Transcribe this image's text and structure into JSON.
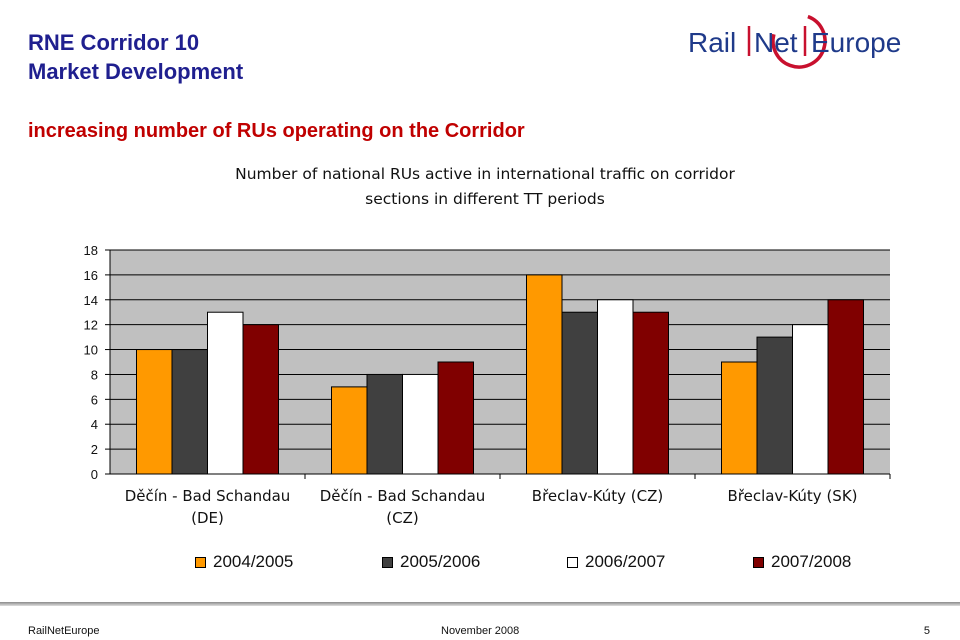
{
  "header": {
    "title_line1": "RNE Corridor 10",
    "title_line2": "Market Development",
    "logo_part1": "Rail",
    "logo_part2": "Net",
    "logo_part3": "Europe"
  },
  "slide": {
    "subtitle": "increasing number of RUs operating on the Corridor"
  },
  "colors": {
    "header_blue": "#1f1f8f",
    "subtitle_red": "#c00000",
    "logo_red": "#c8102e",
    "plot_bg": "#c0c0c0",
    "series": [
      "#ff9900",
      "#404040",
      "#ffffff",
      "#800000"
    ]
  },
  "chart_data": {
    "type": "bar",
    "title_line1": "Number of national RUs active in international traffic on corridor",
    "title_line2": "sections in different TT periods",
    "categories": [
      [
        "Děčín - Bad Schandau",
        "(DE)"
      ],
      [
        "Děčín - Bad Schandau",
        "(CZ)"
      ],
      [
        "Břeclav-Kúty (CZ)"
      ],
      [
        "Břeclav-Kúty (SK)"
      ]
    ],
    "series": [
      {
        "name": "2004/2005",
        "values": [
          10,
          7,
          16,
          9
        ]
      },
      {
        "name": "2005/2006",
        "values": [
          10,
          8,
          13,
          11
        ]
      },
      {
        "name": "2006/2007",
        "values": [
          13,
          8,
          14,
          12
        ]
      },
      {
        "name": "2007/2008",
        "values": [
          12,
          9,
          13,
          14
        ]
      }
    ],
    "ylim": [
      0,
      18
    ],
    "yticks": [
      0,
      2,
      4,
      6,
      8,
      10,
      12,
      14,
      16,
      18
    ],
    "grid": true,
    "legend": "bottom"
  },
  "footer": {
    "left": "RailNetEurope",
    "center": "November 2008",
    "page": "5"
  }
}
